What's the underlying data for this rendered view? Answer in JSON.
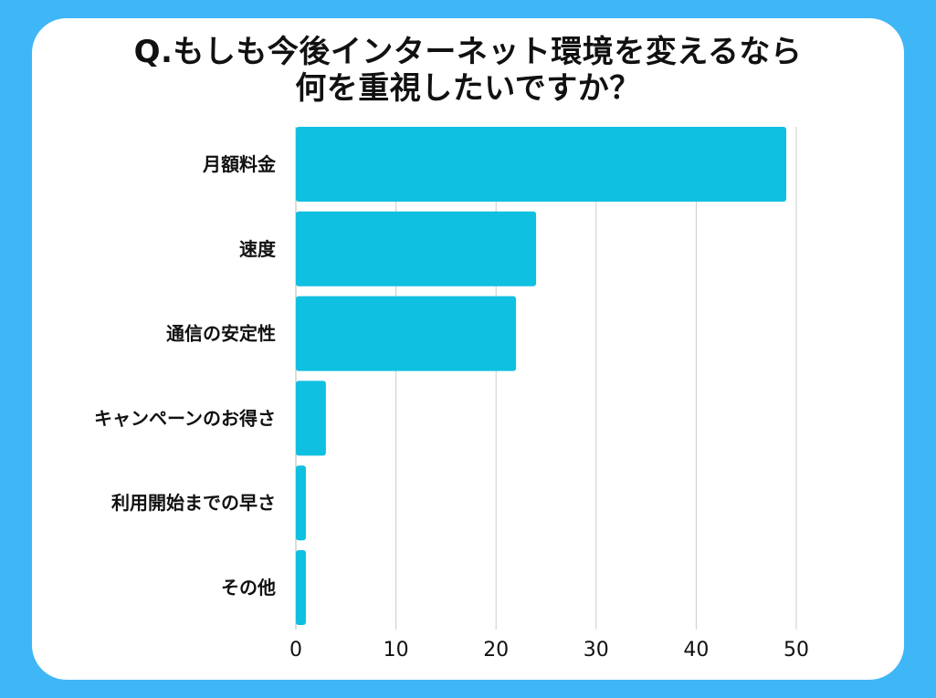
{
  "colors": {
    "page_background": "#3fb6f6",
    "card_background": "#ffffff",
    "bar": "#10c0e1",
    "gridline": "#cccccc",
    "axis_line": "#b8b8b8",
    "text": "#111111"
  },
  "chart_data": {
    "type": "bar",
    "orientation": "horizontal",
    "title": "Q.もしも今後インターネット環境を変えるなら\n何を重視したいですか？",
    "categories": [
      "月額料金",
      "速度",
      "通信の安定性",
      "キャンペーンのお得さ",
      "利用開始までの早さ",
      "その他"
    ],
    "values": [
      49,
      24,
      22,
      3,
      1,
      1
    ],
    "xlim": [
      0,
      50
    ],
    "xticks": [
      0,
      10,
      20,
      30,
      40,
      50
    ],
    "grid": true,
    "legend": "none"
  }
}
